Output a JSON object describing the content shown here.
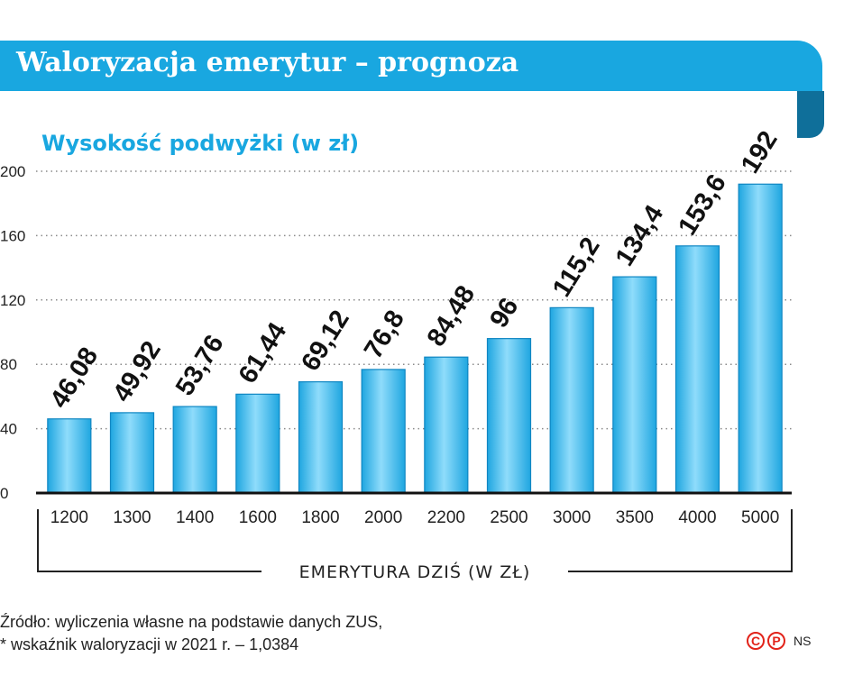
{
  "header": {
    "title": "Waloryzacja emerytur – prognoza",
    "subtitle": "Wysokość podwyżki (w zł)"
  },
  "chart_data": {
    "type": "bar",
    "title": "Waloryzacja emerytur – prognoza",
    "subtitle": "Wysokość podwyżki (w zł)",
    "xlabel": "EMERYTURA DZIŚ (W ZŁ)",
    "ylabel": "",
    "categories": [
      "1200",
      "1300",
      "1400",
      "1600",
      "1800",
      "2000",
      "2200",
      "2500",
      "3000",
      "3500",
      "4000",
      "5000"
    ],
    "values": [
      46.08,
      49.92,
      53.76,
      61.44,
      69.12,
      76.8,
      84.48,
      96,
      115.2,
      134.4,
      153.6,
      192
    ],
    "value_labels": [
      "46,08",
      "49,92",
      "53,76",
      "61,44",
      "69,12",
      "76,8",
      "84,48",
      "96",
      "115,2",
      "134,4",
      "153,6",
      "192"
    ],
    "yticks": [
      "0",
      "40",
      "80",
      "120",
      "160",
      "200"
    ],
    "ylim": [
      0,
      200
    ],
    "grid": true,
    "bar_color": "#2cb4ea"
  },
  "footer": {
    "source_line1": "Źródło: wyliczenia własne na podstawie danych ZUS,",
    "source_line2": "* wskaźnik waloryzacji w 2021 r. – 1,0384",
    "copyright_c": "C",
    "copyright_p": "P",
    "credit": "NS"
  }
}
